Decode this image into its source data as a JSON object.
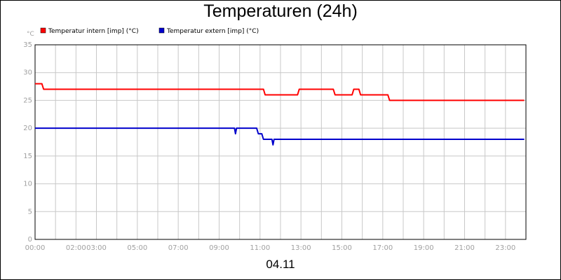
{
  "chart_data": {
    "type": "line",
    "title": "Temperaturen (24h)",
    "date_label": "04.11",
    "y_unit": "°C",
    "ylim": [
      0,
      35
    ],
    "y_ticks": [
      0,
      5,
      10,
      15,
      20,
      25,
      30,
      35
    ],
    "xlim": [
      "00:00",
      "24:00"
    ],
    "x_ticks": [
      "00:00",
      "02:00",
      "03:00",
      "05:00",
      "07:00",
      "09:00",
      "11:00",
      "13:00",
      "15:00",
      "17:00",
      "19:00",
      "21:00",
      "23:00"
    ],
    "grid": true,
    "legend_position": "top-left",
    "series": [
      {
        "name": "Temperatur intern [imp] (°C)",
        "color": "#ff0000",
        "points": [
          [
            "00:00",
            28
          ],
          [
            "00:20",
            28
          ],
          [
            "00:25",
            27
          ],
          [
            "11:10",
            27
          ],
          [
            "11:15",
            26
          ],
          [
            "12:50",
            26
          ],
          [
            "12:55",
            27
          ],
          [
            "14:35",
            27
          ],
          [
            "14:40",
            26
          ],
          [
            "15:30",
            26
          ],
          [
            "15:35",
            27
          ],
          [
            "15:50",
            27
          ],
          [
            "15:55",
            26
          ],
          [
            "17:15",
            26
          ],
          [
            "17:20",
            25
          ],
          [
            "23:55",
            25
          ]
        ]
      },
      {
        "name": "Temperatur extern [imp] (°C)",
        "color": "#0000cc",
        "points": [
          [
            "00:00",
            20
          ],
          [
            "09:45",
            20
          ],
          [
            "09:48",
            19
          ],
          [
            "09:51",
            20
          ],
          [
            "10:50",
            20
          ],
          [
            "10:55",
            19
          ],
          [
            "11:05",
            19
          ],
          [
            "11:10",
            18
          ],
          [
            "11:35",
            18
          ],
          [
            "11:38",
            17
          ],
          [
            "11:41",
            18
          ],
          [
            "23:55",
            18
          ]
        ]
      }
    ]
  }
}
